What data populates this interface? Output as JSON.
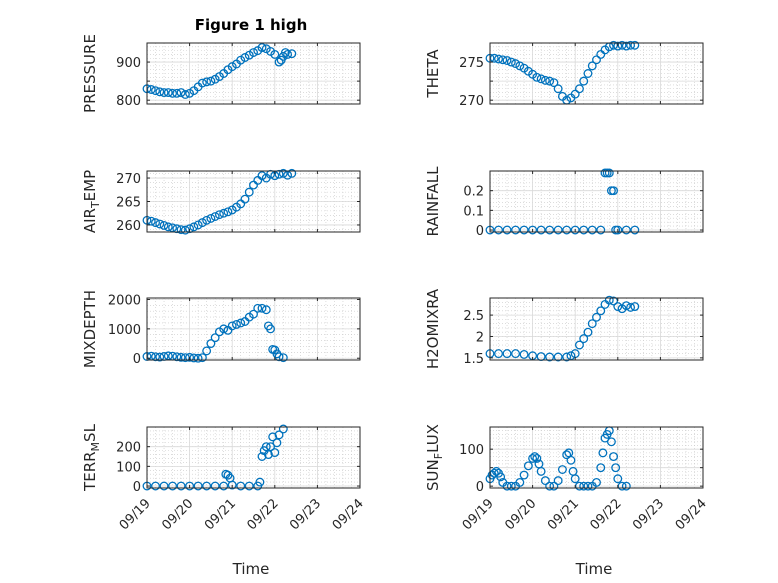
{
  "figure_title": "Figure 1 high",
  "x_axis_label": "Time",
  "colors": {
    "series": "#0072BD",
    "axes": "#262626"
  },
  "chart_data": [
    {
      "type": "scatter",
      "name": "PRESSURE",
      "ylabel": "PRESSURE",
      "ylabel_sub": "",
      "title": "Figure 1 high",
      "xlim": [
        "09/19",
        "09/23"
      ],
      "ylim": [
        790,
        950
      ],
      "yticks": [
        800,
        850,
        900
      ],
      "ytick_labels": [
        "800",
        "",
        "900"
      ],
      "x": [
        0,
        0.1,
        0.2,
        0.3,
        0.4,
        0.5,
        0.6,
        0.7,
        0.8,
        0.9,
        1.0,
        1.1,
        1.2,
        1.3,
        1.4,
        1.5,
        1.6,
        1.7,
        1.8,
        1.9,
        2.0,
        2.1,
        2.2,
        2.3,
        2.4,
        2.5,
        2.6,
        2.7,
        2.8,
        2.9,
        3.0,
        3.1,
        3.15,
        3.2,
        3.25,
        3.3,
        3.4
      ],
      "y": [
        830,
        828,
        825,
        822,
        820,
        820,
        818,
        818,
        820,
        815,
        818,
        825,
        835,
        845,
        848,
        850,
        855,
        862,
        870,
        880,
        888,
        895,
        905,
        912,
        918,
        925,
        930,
        938,
        935,
        928,
        920,
        900,
        905,
        915,
        925,
        920,
        922
      ]
    },
    {
      "type": "scatter",
      "name": "THETA",
      "ylabel": "THETA",
      "ylabel_sub": "",
      "xlim": [
        "09/19",
        "09/23"
      ],
      "ylim": [
        269.5,
        277.5
      ],
      "yticks": [
        270,
        272.5,
        275
      ],
      "ytick_labels": [
        "270",
        "",
        "275"
      ],
      "x": [
        0,
        0.1,
        0.2,
        0.3,
        0.4,
        0.5,
        0.6,
        0.7,
        0.8,
        0.9,
        1.0,
        1.1,
        1.2,
        1.3,
        1.4,
        1.5,
        1.6,
        1.7,
        1.8,
        1.9,
        2.0,
        2.1,
        2.2,
        2.3,
        2.4,
        2.5,
        2.6,
        2.7,
        2.8,
        2.9,
        3.0,
        3.1,
        3.2,
        3.3,
        3.4
      ],
      "y": [
        275.5,
        275.5,
        275.4,
        275.3,
        275.2,
        275.0,
        274.8,
        274.5,
        274.2,
        273.8,
        273.4,
        273.0,
        272.8,
        272.6,
        272.5,
        272.3,
        271.5,
        270.5,
        270.0,
        270.3,
        270.8,
        271.5,
        272.5,
        273.5,
        274.5,
        275.3,
        276.0,
        276.6,
        277.0,
        277.2,
        277.1,
        277.2,
        277.1,
        277.2,
        277.2
      ]
    },
    {
      "type": "scatter",
      "name": "AIR_TEMP",
      "ylabel": "AIR",
      "ylabel_sub": "T",
      "ylabel_rest": "EMP",
      "xlim": [
        "09/19",
        "09/23"
      ],
      "ylim": [
        258.5,
        271.5
      ],
      "yticks": [
        260,
        265,
        270
      ],
      "ytick_labels": [
        "260",
        "265",
        "270"
      ],
      "x": [
        0,
        0.1,
        0.2,
        0.3,
        0.4,
        0.5,
        0.6,
        0.7,
        0.8,
        0.9,
        1.0,
        1.1,
        1.2,
        1.3,
        1.4,
        1.5,
        1.6,
        1.7,
        1.8,
        1.9,
        2.0,
        2.1,
        2.2,
        2.3,
        2.4,
        2.5,
        2.6,
        2.7,
        2.8,
        2.9,
        3.0,
        3.1,
        3.2,
        3.3,
        3.4
      ],
      "y": [
        261.0,
        260.8,
        260.5,
        260.2,
        259.9,
        259.6,
        259.4,
        259.2,
        259.0,
        258.9,
        259.2,
        259.6,
        260.0,
        260.5,
        261.0,
        261.4,
        261.8,
        262.2,
        262.5,
        262.8,
        263.2,
        263.8,
        264.5,
        265.5,
        267.0,
        268.5,
        269.5,
        270.5,
        270.0,
        270.8,
        270.5,
        270.8,
        271.0,
        270.6,
        271.0
      ]
    },
    {
      "type": "scatter",
      "name": "RAINFALL",
      "ylabel": "RAINFALL",
      "ylabel_sub": "",
      "xlim": [
        "09/19",
        "09/23"
      ],
      "ylim": [
        -0.01,
        0.3
      ],
      "yticks": [
        0,
        0.1,
        0.2
      ],
      "ytick_labels": [
        "0",
        "0.1",
        "0.2"
      ],
      "x": [
        0,
        0.2,
        0.4,
        0.6,
        0.8,
        1.0,
        1.2,
        1.4,
        1.6,
        1.8,
        2.0,
        2.2,
        2.4,
        2.6,
        2.7,
        2.75,
        2.8,
        2.85,
        2.9,
        2.95,
        3.0,
        3.2,
        3.4
      ],
      "y": [
        0,
        0,
        0,
        0,
        0,
        0,
        0,
        0,
        0,
        0,
        0,
        0,
        0,
        0,
        0.29,
        0.29,
        0.29,
        0.2,
        0.2,
        0,
        0,
        0,
        0
      ]
    },
    {
      "type": "scatter",
      "name": "MIXDEPTH",
      "ylabel": "MIXDEPTH",
      "ylabel_sub": "",
      "xlim": [
        "09/19",
        "09/23"
      ],
      "ylim": [
        -60,
        2050
      ],
      "yticks": [
        0,
        1000,
        2000
      ],
      "ytick_labels": [
        "0",
        "1000",
        "2000"
      ],
      "x": [
        0,
        0.1,
        0.2,
        0.3,
        0.4,
        0.5,
        0.6,
        0.7,
        0.8,
        0.9,
        1.0,
        1.1,
        1.2,
        1.3,
        1.4,
        1.5,
        1.6,
        1.7,
        1.8,
        1.9,
        2.0,
        2.1,
        2.2,
        2.3,
        2.4,
        2.5,
        2.6,
        2.7,
        2.8,
        2.85,
        2.9,
        2.95,
        3.0,
        3.05,
        3.1,
        3.2
      ],
      "y": [
        60,
        70,
        50,
        40,
        60,
        80,
        70,
        50,
        30,
        20,
        30,
        10,
        0,
        20,
        250,
        500,
        700,
        900,
        1000,
        950,
        1100,
        1150,
        1200,
        1250,
        1400,
        1500,
        1700,
        1700,
        1650,
        1100,
        1000,
        300,
        280,
        150,
        50,
        20
      ]
    },
    {
      "type": "scatter",
      "name": "H2OMIXRA",
      "ylabel": "H2OMIXRA",
      "ylabel_sub": "",
      "xlim": [
        "09/19",
        "09/23"
      ],
      "ylim": [
        1.45,
        2.9
      ],
      "yticks": [
        1.5,
        2,
        2.5
      ],
      "ytick_labels": [
        "1.5",
        "2",
        "2.5"
      ],
      "x": [
        0,
        0.2,
        0.4,
        0.6,
        0.8,
        1.0,
        1.2,
        1.4,
        1.6,
        1.8,
        1.9,
        2.0,
        2.1,
        2.2,
        2.3,
        2.4,
        2.5,
        2.6,
        2.7,
        2.8,
        2.9,
        3.0,
        3.1,
        3.2,
        3.3,
        3.4
      ],
      "y": [
        1.6,
        1.6,
        1.6,
        1.6,
        1.58,
        1.55,
        1.53,
        1.52,
        1.52,
        1.52,
        1.55,
        1.6,
        1.8,
        1.95,
        2.1,
        2.3,
        2.45,
        2.6,
        2.75,
        2.85,
        2.83,
        2.7,
        2.65,
        2.72,
        2.68,
        2.7
      ]
    },
    {
      "type": "scatter",
      "name": "TERR_MSL",
      "ylabel": "TERR",
      "ylabel_sub": "M",
      "ylabel_rest": "SL",
      "xlim": [
        "09/19",
        "09/23"
      ],
      "ylim": [
        -10,
        300
      ],
      "yticks": [
        0,
        100,
        200
      ],
      "ytick_labels": [
        "0",
        "100",
        "200"
      ],
      "x": [
        0,
        0.2,
        0.4,
        0.6,
        0.8,
        1.0,
        1.2,
        1.4,
        1.6,
        1.8,
        1.85,
        1.9,
        1.95,
        2.0,
        2.2,
        2.4,
        2.6,
        2.65,
        2.7,
        2.75,
        2.8,
        2.85,
        2.9,
        2.95,
        3.0,
        3.05,
        3.1,
        3.2
      ],
      "y": [
        0,
        0,
        0,
        0,
        0,
        0,
        0,
        0,
        0,
        0,
        60,
        55,
        40,
        5,
        0,
        0,
        0,
        20,
        150,
        180,
        200,
        160,
        200,
        250,
        170,
        220,
        260,
        290
      ]
    },
    {
      "type": "scatter",
      "name": "SUN_FLUX",
      "ylabel": "SUN",
      "ylabel_sub": "F",
      "ylabel_rest": "LUX",
      "xlim": [
        "09/19",
        "09/23"
      ],
      "ylim": [
        -5,
        160
      ],
      "yticks": [
        0,
        50,
        100
      ],
      "ytick_labels": [
        "0",
        "",
        "100"
      ],
      "x": [
        0,
        0.05,
        0.1,
        0.15,
        0.2,
        0.25,
        0.3,
        0.4,
        0.5,
        0.6,
        0.7,
        0.8,
        0.9,
        1.0,
        1.05,
        1.1,
        1.15,
        1.2,
        1.3,
        1.4,
        1.5,
        1.6,
        1.7,
        1.8,
        1.85,
        1.9,
        1.95,
        2.0,
        2.1,
        2.2,
        2.3,
        2.4,
        2.5,
        2.6,
        2.65,
        2.7,
        2.75,
        2.8,
        2.85,
        2.9,
        2.95,
        3.0,
        3.1,
        3.2
      ],
      "y": [
        20,
        30,
        35,
        40,
        35,
        25,
        10,
        0,
        0,
        0,
        10,
        30,
        55,
        75,
        80,
        75,
        60,
        40,
        15,
        0,
        0,
        15,
        45,
        85,
        90,
        70,
        40,
        20,
        0,
        0,
        0,
        0,
        10,
        50,
        90,
        130,
        140,
        150,
        120,
        80,
        50,
        20,
        0,
        0
      ]
    }
  ],
  "x_ticks": [
    "09/19",
    "09/20",
    "09/21",
    "09/22",
    "09/23",
    "09/24"
  ]
}
